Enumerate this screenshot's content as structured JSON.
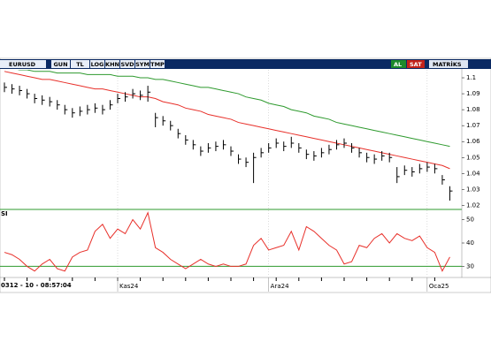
{
  "toolbar": {
    "symbol": "EURUSD",
    "buttons": [
      "GUN",
      "TL",
      "LOG",
      "KHN",
      "SVD",
      "SYM",
      "TMP"
    ],
    "buy": "AL",
    "sell": "SAT",
    "brand": "MATRİKS"
  },
  "crosshair": "0312 - 10 - 08:57:04",
  "chart_data": [
    {
      "type": "ohlc",
      "color": "#000000",
      "categories": [
        null,
        null,
        null,
        null,
        null,
        null,
        null,
        null,
        null,
        null,
        null,
        null,
        null,
        null,
        null,
        "Kas24",
        null,
        null,
        null,
        null,
        null,
        null,
        null,
        null,
        null,
        null,
        null,
        null,
        null,
        null,
        null,
        null,
        null,
        null,
        null,
        "Ara24",
        null,
        null,
        null,
        null,
        null,
        null,
        null,
        null,
        null,
        null,
        null,
        null,
        null,
        null,
        null,
        null,
        null,
        null,
        null,
        null,
        "Oca25",
        null,
        null,
        null
      ],
      "high": [
        1.097,
        1.096,
        1.095,
        1.093,
        1.09,
        1.089,
        1.088,
        1.086,
        1.083,
        1.081,
        1.082,
        1.083,
        1.084,
        1.083,
        1.086,
        1.09,
        1.091,
        1.093,
        1.092,
        1.095,
        1.078,
        1.076,
        1.073,
        1.068,
        1.064,
        1.061,
        1.057,
        1.059,
        1.06,
        1.061,
        1.057,
        1.052,
        1.05,
        1.053,
        1.056,
        1.059,
        1.062,
        1.06,
        1.063,
        1.059,
        1.055,
        1.054,
        1.056,
        1.058,
        1.061,
        1.062,
        1.059,
        1.056,
        1.053,
        1.052,
        1.054,
        1.053,
        1.044,
        1.045,
        1.044,
        1.046,
        1.047,
        1.046,
        1.039,
        1.032
      ],
      "low": [
        1.091,
        1.09,
        1.089,
        1.087,
        1.084,
        1.083,
        1.082,
        1.08,
        1.077,
        1.075,
        1.076,
        1.077,
        1.078,
        1.077,
        1.08,
        1.084,
        1.085,
        1.087,
        1.086,
        1.085,
        1.069,
        1.07,
        1.067,
        1.062,
        1.058,
        1.055,
        1.051,
        1.053,
        1.054,
        1.055,
        1.051,
        1.046,
        1.044,
        1.034,
        1.05,
        1.053,
        1.056,
        1.054,
        1.056,
        1.053,
        1.049,
        1.048,
        1.05,
        1.052,
        1.055,
        1.056,
        1.053,
        1.05,
        1.047,
        1.046,
        1.048,
        1.047,
        1.034,
        1.039,
        1.038,
        1.04,
        1.041,
        1.04,
        1.033,
        1.023
      ],
      "close": [
        1.094,
        1.093,
        1.092,
        1.09,
        1.087,
        1.086,
        1.085,
        1.083,
        1.08,
        1.078,
        1.079,
        1.08,
        1.081,
        1.08,
        1.083,
        1.087,
        1.088,
        1.09,
        1.089,
        1.091,
        1.075,
        1.073,
        1.07,
        1.065,
        1.061,
        1.058,
        1.054,
        1.056,
        1.057,
        1.058,
        1.054,
        1.049,
        1.047,
        1.05,
        1.053,
        1.056,
        1.059,
        1.057,
        1.059,
        1.056,
        1.052,
        1.051,
        1.053,
        1.055,
        1.058,
        1.059,
        1.056,
        1.053,
        1.05,
        1.049,
        1.051,
        1.05,
        1.038,
        1.042,
        1.041,
        1.043,
        1.044,
        1.043,
        1.036,
        1.029
      ],
      "series": [
        {
          "color": "#e8302a",
          "values": [
            1.104,
            1.103,
            1.102,
            1.101,
            1.1,
            1.099,
            1.099,
            1.098,
            1.097,
            1.096,
            1.095,
            1.094,
            1.093,
            1.093,
            1.092,
            1.091,
            1.09,
            1.089,
            1.088,
            1.088,
            1.087,
            1.085,
            1.084,
            1.083,
            1.081,
            1.08,
            1.079,
            1.077,
            1.076,
            1.075,
            1.074,
            1.072,
            1.071,
            1.07,
            1.069,
            1.068,
            1.067,
            1.066,
            1.065,
            1.064,
            1.063,
            1.062,
            1.061,
            1.06,
            1.059,
            1.058,
            1.057,
            1.056,
            1.055,
            1.054,
            1.053,
            1.052,
            1.051,
            1.05,
            1.049,
            1.048,
            1.047,
            1.046,
            1.045,
            1.043
          ]
        },
        {
          "color": "#2e9a2e",
          "values": [
            1.106,
            1.106,
            1.105,
            1.105,
            1.104,
            1.104,
            1.104,
            1.103,
            1.103,
            1.103,
            1.103,
            1.102,
            1.102,
            1.102,
            1.102,
            1.101,
            1.101,
            1.101,
            1.1,
            1.1,
            1.099,
            1.099,
            1.098,
            1.097,
            1.096,
            1.095,
            1.094,
            1.094,
            1.093,
            1.092,
            1.091,
            1.09,
            1.088,
            1.087,
            1.086,
            1.084,
            1.083,
            1.082,
            1.08,
            1.079,
            1.078,
            1.076,
            1.075,
            1.074,
            1.072,
            1.071,
            1.07,
            1.069,
            1.068,
            1.067,
            1.066,
            1.065,
            1.064,
            1.063,
            1.062,
            1.061,
            1.06,
            1.059,
            1.058,
            1.057
          ]
        }
      ],
      "ylim": [
        1.018,
        1.105
      ],
      "yticks": [
        1.1,
        1.09,
        1.08,
        1.07,
        1.06,
        1.05,
        1.04,
        1.03,
        1.02
      ],
      "grid": true
    },
    {
      "type": "line",
      "title": "SI",
      "color": "#e8302a",
      "values": [
        36,
        35,
        33,
        30,
        28,
        31,
        33,
        29,
        28,
        34,
        36,
        37,
        45,
        48,
        42,
        46,
        44,
        50,
        46,
        53,
        38,
        36,
        33,
        31,
        29,
        31,
        33,
        31,
        30,
        31,
        30,
        30,
        31,
        39,
        42,
        37,
        38,
        39,
        45,
        37,
        47,
        45,
        42,
        39,
        37,
        31,
        32,
        39,
        38,
        42,
        44,
        40,
        44,
        42,
        41,
        43,
        38,
        36,
        28,
        34
      ],
      "reference": 30,
      "reference_color": "#2e9a2e",
      "ylim": [
        26,
        54
      ],
      "yticks": [
        50,
        40,
        30
      ],
      "grid": true
    }
  ]
}
